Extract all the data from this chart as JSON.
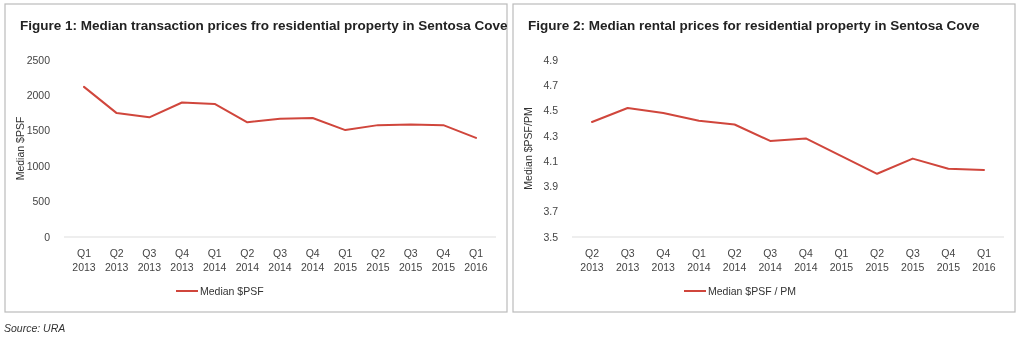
{
  "chart_data": [
    {
      "type": "line",
      "title": "Figure 1: Median transaction prices fro residential property in Sentosa Cove",
      "ylabel": "Median $PSF",
      "categories": [
        "Q1 2013",
        "Q2 2013",
        "Q3 2013",
        "Q4 2013",
        "Q1 2014",
        "Q2 2014",
        "Q3 2014",
        "Q4 2014",
        "Q1 2015",
        "Q2 2015",
        "Q3 2015",
        "Q4 2015",
        "Q1 2016"
      ],
      "series": [
        {
          "name": "Median $PSF",
          "color": "#d0463c",
          "values": [
            2120,
            1750,
            1690,
            1900,
            1880,
            1620,
            1670,
            1680,
            1510,
            1580,
            1590,
            1580,
            1400
          ]
        }
      ],
      "ylim": [
        0,
        2500
      ],
      "yticks": [
        0,
        500,
        1000,
        1500,
        2000,
        2500
      ],
      "legend": "bottom",
      "grid": false,
      "annotations": [
        "Source: URA"
      ]
    },
    {
      "type": "line",
      "title": "Figure 2: Median rental prices for residential property in Sentosa Cove",
      "ylabel": "Median $PSF/PM",
      "categories": [
        "Q2 2013",
        "Q3 2013",
        "Q4 2013",
        "Q1 2014",
        "Q2 2014",
        "Q3 2014",
        "Q4 2014",
        "Q1 2015",
        "Q2 2015",
        "Q3 2015",
        "Q4 2015",
        "Q1 2016"
      ],
      "series": [
        {
          "name": "Median $PSF / PM",
          "color": "#d0463c",
          "values": [
            4.41,
            4.52,
            4.48,
            4.42,
            4.39,
            4.26,
            4.28,
            4.14,
            4.0,
            4.12,
            4.04,
            4.03
          ]
        }
      ],
      "ylim": [
        3.5,
        4.9
      ],
      "yticks": [
        3.5,
        3.7,
        3.9,
        4.1,
        4.3,
        4.5,
        4.7,
        4.9
      ],
      "legend": "bottom",
      "grid": false
    }
  ]
}
